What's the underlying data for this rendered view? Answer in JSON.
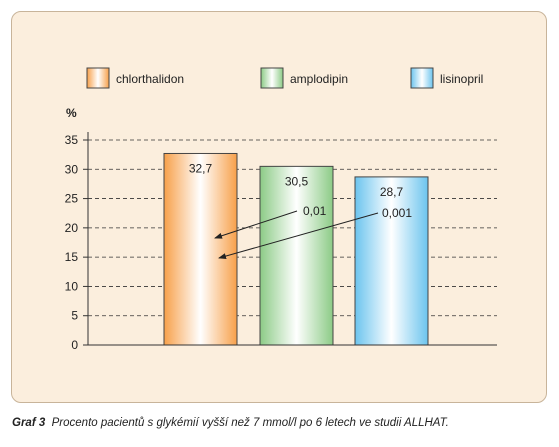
{
  "caption": {
    "label": "Graf 3",
    "text": "Procento pacientů s glykémií vyšší než 7 mmol/l po 6 letech ve studii ALLHAT."
  },
  "chart_data": {
    "type": "bar",
    "categories": [
      "chlorthalidon",
      "amplodipin",
      "lisinopril"
    ],
    "values": [
      32.7,
      30.5,
      28.7
    ],
    "value_labels": [
      "32,7",
      "30,5",
      "28,7"
    ],
    "bar_colors": [
      "#f7a04a",
      "#8ccb86",
      "#6cc4ee"
    ],
    "ylabel": "%",
    "ylim": [
      0,
      35
    ],
    "yticks": [
      0,
      5,
      10,
      15,
      20,
      25,
      30,
      35
    ],
    "grid": true,
    "legend": "top",
    "annotations": [
      {
        "text": "0,01",
        "from_bar": 1,
        "to_bar": 0,
        "y": 19
      },
      {
        "text": "0,001",
        "from_bar": 2,
        "to_bar": 0,
        "y": 20
      }
    ]
  },
  "colors": {
    "panel_bg": "#fbeedd",
    "gridline": "#333333",
    "text": "#222222"
  }
}
